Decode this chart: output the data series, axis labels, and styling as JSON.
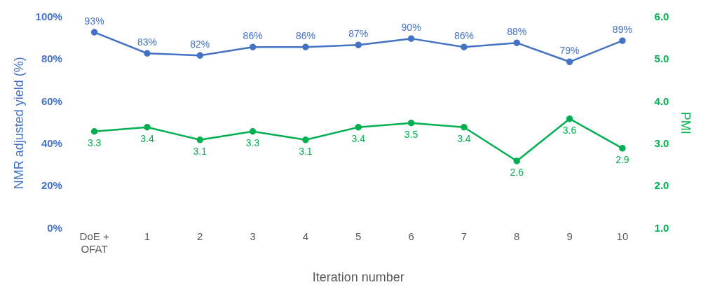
{
  "chart_data": {
    "type": "line",
    "xlabel": "Iteration number",
    "ylabel": "NMR adjusted yield (%)",
    "y2label": "PMI",
    "categories": [
      "DoE + OFAT",
      "1",
      "2",
      "3",
      "4",
      "5",
      "6",
      "7",
      "8",
      "9",
      "10"
    ],
    "series": [
      {
        "color": "#4472c4",
        "values": [
          93,
          83,
          82,
          86,
          86,
          87,
          90,
          86,
          88,
          79,
          89
        ],
        "value_labels": [
          "93%",
          "83%",
          "82%",
          "86%",
          "86%",
          "87%",
          "90%",
          "86%",
          "88%",
          "79%",
          "89%"
        ]
      },
      {
        "color": "#00b050",
        "axis": "y2",
        "values": [
          3.3,
          3.4,
          3.1,
          3.3,
          3.1,
          3.4,
          3.5,
          3.4,
          2.6,
          3.6,
          2.9
        ],
        "value_labels": [
          "3.3",
          "3.4",
          "3.1",
          "3.3",
          "3.1",
          "3.4",
          "3.5",
          "3.4",
          "2.6",
          "3.6",
          "2.9"
        ]
      }
    ],
    "ylim": [
      0,
      100
    ],
    "yticks": [
      {
        "value": 0,
        "label": "0%"
      },
      {
        "value": 20,
        "label": "20%"
      },
      {
        "value": 40,
        "label": "40%"
      },
      {
        "value": 60,
        "label": "60%"
      },
      {
        "value": 80,
        "label": "80%"
      },
      {
        "value": 100,
        "label": "100%"
      }
    ],
    "y2lim": [
      1,
      6
    ],
    "y2ticks": [
      {
        "value": 1,
        "label": "1.0"
      },
      {
        "value": 2,
        "label": "2.0"
      },
      {
        "value": 3,
        "label": "3.0"
      },
      {
        "value": 4,
        "label": "4.0"
      },
      {
        "value": 5,
        "label": "5.0"
      },
      {
        "value": 6,
        "label": "6.0"
      }
    ],
    "grid": false,
    "legend": false,
    "marker": "circle",
    "line_style": "solid"
  }
}
